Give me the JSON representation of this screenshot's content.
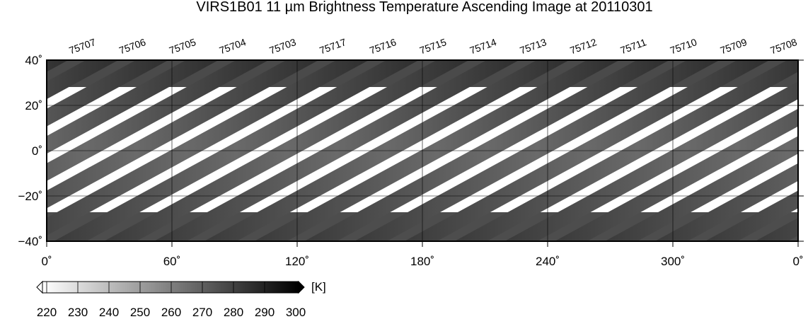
{
  "title": "VIRS1B01 11 µm Brightness Temperature Ascending Image at 20110301",
  "orbits": [
    "75707",
    "75706",
    "75705",
    "75704",
    "75703",
    "75717",
    "75716",
    "75715",
    "75714",
    "75713",
    "75712",
    "75711",
    "75710",
    "75709",
    "75708"
  ],
  "lat_range": [
    -40,
    40
  ],
  "lat_ticks": [
    {
      "value": 40,
      "label": "40˚"
    },
    {
      "value": 20,
      "label": "20˚"
    },
    {
      "value": 0,
      "label": "0˚"
    },
    {
      "value": -20,
      "label": "−20˚"
    },
    {
      "value": -40,
      "label": "−40˚"
    }
  ],
  "lon_range": [
    0,
    360
  ],
  "lon_ticks": [
    {
      "value": 0,
      "label": "0˚"
    },
    {
      "value": 60,
      "label": "60˚"
    },
    {
      "value": 120,
      "label": "120˚"
    },
    {
      "value": 180,
      "label": "180˚"
    },
    {
      "value": 240,
      "label": "240˚"
    },
    {
      "value": 300,
      "label": "300˚"
    },
    {
      "value": 360,
      "label": "0˚"
    }
  ],
  "colorbar": {
    "unit": "[K]",
    "range": [
      220,
      300
    ],
    "ticks": [
      220,
      230,
      240,
      250,
      260,
      270,
      280,
      290,
      300
    ]
  }
}
